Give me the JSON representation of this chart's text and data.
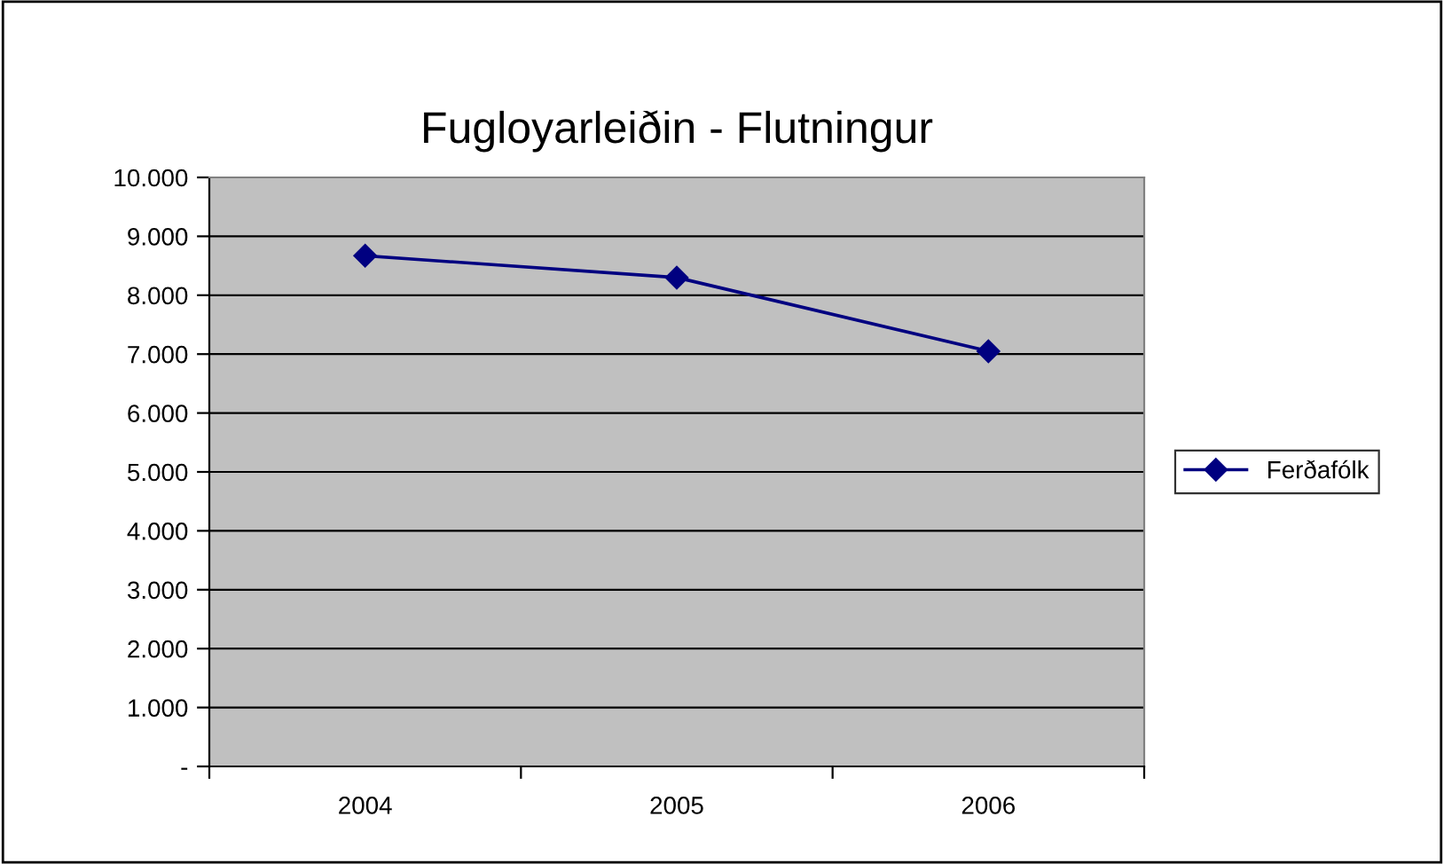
{
  "chart_data": {
    "type": "line",
    "title": "Fugloyarleiðin - Flutningur",
    "categories": [
      "2004",
      "2005",
      "2006"
    ],
    "series": [
      {
        "name": "Ferðafólk",
        "color": "#000080",
        "values": [
          8670,
          8300,
          7050
        ]
      }
    ],
    "ylim": [
      0,
      10000
    ],
    "yticks": [
      {
        "value": 0,
        "label": "-"
      },
      {
        "value": 1000,
        "label": "1.000"
      },
      {
        "value": 2000,
        "label": "2.000"
      },
      {
        "value": 3000,
        "label": "3.000"
      },
      {
        "value": 4000,
        "label": "4.000"
      },
      {
        "value": 5000,
        "label": "5.000"
      },
      {
        "value": 6000,
        "label": "6.000"
      },
      {
        "value": 7000,
        "label": "7.000"
      },
      {
        "value": 8000,
        "label": "8.000"
      },
      {
        "value": 9000,
        "label": "9.000"
      },
      {
        "value": 10000,
        "label": "10.000"
      }
    ],
    "grid": "y",
    "legend": "right",
    "marker": "diamond",
    "line_style": "solid"
  }
}
